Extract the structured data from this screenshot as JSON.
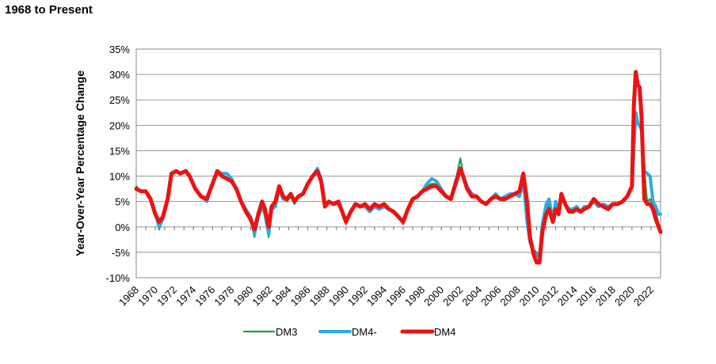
{
  "header": {
    "title": "1968 to Present"
  },
  "chart_data": {
    "type": "line",
    "title": "",
    "xlabel": "",
    "ylabel": "Year-Over-Year Percentage Change",
    "xlim": [
      1968,
      2023
    ],
    "ylim": [
      -10,
      35
    ],
    "y_ticks": [
      -10,
      -5,
      0,
      5,
      10,
      15,
      20,
      25,
      30,
      35
    ],
    "y_tick_labels": [
      "-10%",
      "-5%",
      "0%",
      "5%",
      "10%",
      "15%",
      "20%",
      "25%",
      "30%",
      "35%"
    ],
    "x_ticks": [
      1968,
      1970,
      1972,
      1974,
      1976,
      1978,
      1980,
      1982,
      1984,
      1986,
      1988,
      1990,
      1992,
      1994,
      1996,
      1998,
      2000,
      2002,
      2004,
      2006,
      2008,
      2010,
      2012,
      2014,
      2016,
      2018,
      2020,
      2022
    ],
    "x_tick_labels": [
      "1968",
      "1970",
      "1972",
      "1974",
      "1976",
      "1978",
      "1980",
      "1982",
      "1984",
      "1986",
      "1988",
      "1990",
      "1992",
      "1994",
      "1996",
      "1998",
      "2000",
      "2002",
      "2004",
      "2006",
      "2008",
      "2010",
      "2012",
      "2014",
      "2016",
      "2018",
      "2020",
      "2022"
    ],
    "grid": true,
    "legend_position": "bottom",
    "series": [
      {
        "name": "DM3",
        "color": "#1a9e4a",
        "x": [
          1968.0,
          1968.5,
          1969.0,
          1969.5,
          1970.0,
          1970.4,
          1970.8,
          1971.3,
          1971.7,
          1972.2,
          1972.6,
          1973.2,
          1973.6,
          1974.2,
          1974.8,
          1975.4,
          1976.0,
          1976.5,
          1977.0,
          1977.5,
          1978.0,
          1978.5,
          1979.0,
          1979.5,
          1980.0,
          1980.4,
          1980.8,
          1981.2,
          1981.5,
          1981.9,
          1982.2,
          1982.6,
          1983.0,
          1983.4,
          1983.8,
          1984.2,
          1984.6,
          1985.0,
          1985.5,
          1986.0,
          1986.5,
          1987.0,
          1987.4,
          1987.8,
          1988.2,
          1988.7,
          1989.2,
          1989.6,
          1990.0,
          1990.5,
          1991.0,
          1991.5,
          1992.0,
          1992.5,
          1993.0,
          1993.5,
          1994.0,
          1994.5,
          1995.0,
          1995.5,
          1996.0,
          1996.5,
          1997.0,
          1997.5,
          1998.0,
          1998.5,
          1999.0,
          1999.5,
          2000.0,
          2000.5,
          2001.0,
          2001.5,
          2002.0,
          2002.3,
          2002.7,
          2003.2,
          2003.7,
          2004.2,
          2004.7,
          2005.2,
          2005.7,
          2006.2,
          2006.7,
          2007.2,
          2007.7,
          2008.2,
          2008.6,
          2009.0,
          2009.3,
          2009.7,
          2010.0,
          2010.3,
          2010.6,
          2011.0,
          2011.3,
          2011.7,
          2012.0,
          2012.3,
          2012.6,
          2013.0,
          2013.4,
          2013.8,
          2014.2,
          2014.6,
          2015.0,
          2015.5,
          2016.0,
          2016.5,
          2017.0,
          2017.5,
          2018.0,
          2018.5,
          2019.0,
          2019.5,
          2020.0,
          2020.2,
          2020.4,
          2020.6,
          2020.8,
          2021.0,
          2021.3,
          2021.6,
          2021.9,
          2022.2,
          2022.5,
          2022.8,
          2023.0
        ],
        "values": [
          8.0,
          7.0,
          7.0,
          5.5,
          2.5,
          -0.5,
          1.5,
          5.0,
          10.5,
          11.0,
          10.5,
          11.0,
          10.0,
          7.5,
          6.0,
          5.0,
          8.0,
          10.5,
          10.0,
          9.5,
          9.0,
          7.5,
          5.0,
          3.0,
          1.5,
          -2.0,
          2.0,
          4.0,
          2.0,
          -2.0,
          3.5,
          4.0,
          7.5,
          5.5,
          5.0,
          6.0,
          4.5,
          6.0,
          6.5,
          8.5,
          10.0,
          11.5,
          9.5,
          4.0,
          5.0,
          4.5,
          5.0,
          3.0,
          0.5,
          3.0,
          4.5,
          4.0,
          4.0,
          3.5,
          4.5,
          4.0,
          4.0,
          3.5,
          3.0,
          2.0,
          0.5,
          3.5,
          5.5,
          6.0,
          7.0,
          8.0,
          8.5,
          8.5,
          7.5,
          6.0,
          5.5,
          9.0,
          13.5,
          10.5,
          8.0,
          6.5,
          6.0,
          5.0,
          4.5,
          5.5,
          6.5,
          5.5,
          5.5,
          6.0,
          6.5,
          7.0,
          10.0,
          2.0,
          -2.0,
          -4.5,
          -5.0,
          -6.0,
          0.0,
          3.0,
          4.5,
          1.5,
          4.5,
          3.0,
          6.0,
          4.5,
          3.5,
          3.0,
          3.5,
          3.0,
          4.0,
          4.0,
          5.0,
          4.0,
          4.5,
          4.0,
          4.5,
          4.5,
          5.0,
          6.0,
          8.0,
          15.0,
          21.5,
          20.5,
          20.0,
          19.0,
          11.0,
          5.0,
          5.5,
          4.5,
          3.0,
          0.5,
          0.0
        ]
      },
      {
        "name": "DM4-",
        "color": "#29abe2",
        "x": [
          1968.0,
          1968.5,
          1969.0,
          1969.5,
          1970.0,
          1970.4,
          1970.8,
          1971.3,
          1971.7,
          1972.2,
          1972.6,
          1973.2,
          1973.6,
          1974.2,
          1974.8,
          1975.4,
          1976.0,
          1976.5,
          1977.0,
          1977.5,
          1978.0,
          1978.5,
          1979.0,
          1979.5,
          1980.0,
          1980.4,
          1980.8,
          1981.2,
          1981.5,
          1981.9,
          1982.2,
          1982.6,
          1983.0,
          1983.4,
          1983.8,
          1984.2,
          1984.6,
          1985.0,
          1985.5,
          1986.0,
          1986.5,
          1987.0,
          1987.4,
          1987.8,
          1988.2,
          1988.7,
          1989.2,
          1989.6,
          1990.0,
          1990.5,
          1991.0,
          1991.5,
          1992.0,
          1992.5,
          1993.0,
          1993.5,
          1994.0,
          1994.5,
          1995.0,
          1995.5,
          1996.0,
          1996.5,
          1997.0,
          1997.5,
          1998.0,
          1998.5,
          1999.0,
          1999.5,
          2000.0,
          2000.5,
          2001.0,
          2001.5,
          2002.0,
          2002.3,
          2002.7,
          2003.2,
          2003.7,
          2004.2,
          2004.7,
          2005.2,
          2005.7,
          2006.2,
          2006.7,
          2007.2,
          2007.7,
          2008.2,
          2008.6,
          2009.0,
          2009.3,
          2009.7,
          2010.0,
          2010.3,
          2010.6,
          2011.0,
          2011.3,
          2011.7,
          2012.0,
          2012.3,
          2012.6,
          2013.0,
          2013.4,
          2013.8,
          2014.2,
          2014.6,
          2015.0,
          2015.5,
          2016.0,
          2016.5,
          2017.0,
          2017.5,
          2018.0,
          2018.5,
          2019.0,
          2019.5,
          2020.0,
          2020.2,
          2020.4,
          2020.6,
          2020.8,
          2021.0,
          2021.3,
          2021.6,
          2021.9,
          2022.2,
          2022.5,
          2022.8,
          2023.0
        ],
        "values": [
          7.5,
          7.0,
          7.0,
          5.5,
          2.5,
          0.0,
          1.5,
          5.5,
          10.5,
          11.0,
          10.5,
          11.0,
          10.0,
          7.5,
          6.0,
          5.0,
          8.5,
          11.0,
          10.5,
          10.5,
          9.5,
          7.5,
          5.0,
          3.5,
          2.0,
          -1.5,
          2.0,
          4.0,
          2.5,
          -1.5,
          3.5,
          4.0,
          7.5,
          5.5,
          5.5,
          6.0,
          5.0,
          6.0,
          6.5,
          8.5,
          10.0,
          11.5,
          9.5,
          4.5,
          5.0,
          4.5,
          4.5,
          3.0,
          1.0,
          3.0,
          4.5,
          4.0,
          4.0,
          3.0,
          4.0,
          3.5,
          4.0,
          3.5,
          3.0,
          2.0,
          1.0,
          3.5,
          5.5,
          6.0,
          7.0,
          8.5,
          9.5,
          9.0,
          7.5,
          6.0,
          5.5,
          9.0,
          11.5,
          10.0,
          8.0,
          6.5,
          6.0,
          5.0,
          4.5,
          5.5,
          6.5,
          5.5,
          6.0,
          6.5,
          6.5,
          6.0,
          9.0,
          1.0,
          -3.0,
          -5.0,
          -5.5,
          -6.0,
          0.5,
          4.5,
          5.5,
          1.5,
          5.0,
          3.0,
          6.5,
          4.5,
          3.5,
          3.5,
          4.0,
          3.0,
          4.0,
          4.0,
          5.0,
          4.0,
          4.5,
          4.0,
          4.5,
          4.5,
          5.0,
          6.0,
          8.0,
          15.0,
          22.5,
          20.5,
          20.0,
          19.0,
          11.0,
          10.5,
          10.0,
          5.0,
          4.0,
          2.5,
          2.5
        ]
      },
      {
        "name": "DM4",
        "color": "#ee1111",
        "x": [
          1968.0,
          1968.5,
          1969.0,
          1969.5,
          1970.0,
          1970.4,
          1970.8,
          1971.3,
          1971.7,
          1972.2,
          1972.6,
          1973.2,
          1973.6,
          1974.2,
          1974.8,
          1975.4,
          1976.0,
          1976.5,
          1977.0,
          1977.5,
          1978.0,
          1978.5,
          1979.0,
          1979.5,
          1980.0,
          1980.4,
          1980.8,
          1981.2,
          1981.5,
          1981.9,
          1982.2,
          1982.6,
          1983.0,
          1983.4,
          1983.8,
          1984.2,
          1984.6,
          1985.0,
          1985.5,
          1986.0,
          1986.5,
          1987.0,
          1987.4,
          1987.8,
          1988.2,
          1988.7,
          1989.2,
          1989.6,
          1990.0,
          1990.5,
          1991.0,
          1991.5,
          1992.0,
          1992.5,
          1993.0,
          1993.5,
          1994.0,
          1994.5,
          1995.0,
          1995.5,
          1996.0,
          1996.5,
          1997.0,
          1997.5,
          1998.0,
          1998.5,
          1999.0,
          1999.5,
          2000.0,
          2000.5,
          2001.0,
          2001.5,
          2002.0,
          2002.3,
          2002.7,
          2003.2,
          2003.7,
          2004.2,
          2004.7,
          2005.2,
          2005.7,
          2006.2,
          2006.7,
          2007.2,
          2007.7,
          2008.2,
          2008.6,
          2009.0,
          2009.3,
          2009.7,
          2010.0,
          2010.3,
          2010.6,
          2011.0,
          2011.3,
          2011.7,
          2012.0,
          2012.3,
          2012.6,
          2013.0,
          2013.4,
          2013.8,
          2014.2,
          2014.6,
          2015.0,
          2015.5,
          2016.0,
          2016.5,
          2017.0,
          2017.5,
          2018.0,
          2018.5,
          2019.0,
          2019.5,
          2020.0,
          2020.2,
          2020.4,
          2020.6,
          2020.8,
          2021.0,
          2021.3,
          2021.6,
          2021.9,
          2022.2,
          2022.5,
          2022.8,
          2023.0
        ],
        "values": [
          7.5,
          7.0,
          7.0,
          5.5,
          2.5,
          1.0,
          2.0,
          5.5,
          10.5,
          11.0,
          10.5,
          11.0,
          10.0,
          7.5,
          6.0,
          5.5,
          8.5,
          11.0,
          10.0,
          9.5,
          9.0,
          7.5,
          5.0,
          3.0,
          1.5,
          -0.5,
          2.5,
          5.0,
          3.5,
          0.0,
          4.0,
          5.0,
          8.0,
          6.0,
          5.5,
          6.5,
          5.0,
          6.0,
          6.5,
          8.5,
          10.0,
          11.0,
          9.0,
          4.0,
          5.0,
          4.5,
          5.0,
          3.0,
          1.0,
          3.0,
          4.5,
          4.0,
          4.5,
          3.5,
          4.5,
          4.0,
          4.5,
          3.5,
          3.0,
          2.0,
          1.0,
          3.5,
          5.5,
          6.0,
          7.0,
          7.5,
          8.0,
          8.0,
          7.0,
          6.0,
          5.5,
          8.5,
          11.5,
          10.0,
          7.5,
          6.0,
          6.0,
          5.0,
          4.5,
          5.5,
          6.0,
          5.5,
          5.5,
          6.0,
          6.5,
          7.0,
          10.5,
          5.0,
          -2.0,
          -5.5,
          -7.0,
          -7.0,
          -1.0,
          2.5,
          3.5,
          1.0,
          3.5,
          2.5,
          6.5,
          4.5,
          3.0,
          3.0,
          3.5,
          3.0,
          3.5,
          4.0,
          5.5,
          4.5,
          4.0,
          3.5,
          4.5,
          4.5,
          5.0,
          6.0,
          8.0,
          24.0,
          30.5,
          28.0,
          27.5,
          22.0,
          5.5,
          4.5,
          4.5,
          3.5,
          1.5,
          0.0,
          -1.0
        ]
      }
    ]
  }
}
